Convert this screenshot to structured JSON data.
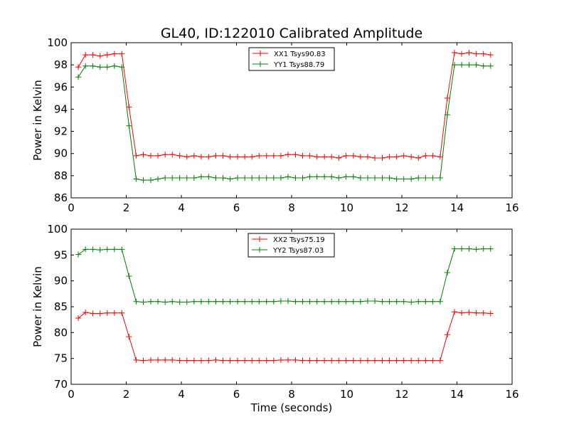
{
  "chart_data": [
    {
      "type": "line",
      "title": "GL40, ID:122010 Calibrated Amplitude",
      "xlabel": "",
      "ylabel": "Power in Kelvin",
      "xlim": [
        0,
        16
      ],
      "ylim": [
        86,
        100
      ],
      "xticks": [
        0,
        2,
        4,
        6,
        8,
        10,
        12,
        14,
        16
      ],
      "yticks": [
        86,
        88,
        90,
        92,
        94,
        96,
        98,
        100
      ],
      "grid": false,
      "legend": "top-center",
      "x": [
        0.26,
        0.52,
        0.79,
        1.05,
        1.31,
        1.57,
        1.84,
        2.1,
        2.36,
        2.62,
        2.89,
        3.15,
        3.41,
        3.67,
        3.94,
        4.2,
        4.46,
        4.72,
        4.99,
        5.25,
        5.51,
        5.77,
        6.04,
        6.3,
        6.56,
        6.82,
        7.09,
        7.35,
        7.61,
        7.87,
        8.14,
        8.4,
        8.66,
        8.92,
        9.19,
        9.45,
        9.71,
        9.97,
        10.24,
        10.5,
        10.76,
        11.02,
        11.29,
        11.55,
        11.81,
        12.07,
        12.34,
        12.6,
        12.86,
        13.12,
        13.39,
        13.65,
        13.91,
        14.17,
        14.44,
        14.7,
        14.96,
        15.22
      ],
      "series": [
        {
          "name": "XX1 Tsys90.83",
          "color": "#ff0000",
          "values": [
            97.8,
            98.9,
            98.9,
            98.8,
            98.9,
            99.0,
            99.0,
            94.2,
            89.8,
            89.9,
            89.8,
            89.8,
            89.9,
            89.9,
            89.8,
            89.7,
            89.8,
            89.7,
            89.7,
            89.8,
            89.8,
            89.7,
            89.7,
            89.7,
            89.7,
            89.8,
            89.8,
            89.8,
            89.8,
            89.9,
            89.9,
            89.8,
            89.8,
            89.7,
            89.7,
            89.7,
            89.6,
            89.8,
            89.8,
            89.7,
            89.7,
            89.6,
            89.6,
            89.7,
            89.7,
            89.8,
            89.7,
            89.6,
            89.8,
            89.8,
            89.7,
            95.0,
            99.1,
            99.0,
            99.1,
            99.0,
            99.0,
            98.9
          ]
        },
        {
          "name": "YY1 Tsys88.79",
          "color": "#008000",
          "values": [
            96.9,
            97.9,
            97.9,
            97.8,
            97.8,
            97.9,
            97.8,
            92.5,
            87.7,
            87.6,
            87.6,
            87.7,
            87.8,
            87.8,
            87.8,
            87.8,
            87.8,
            87.9,
            87.9,
            87.8,
            87.8,
            87.7,
            87.8,
            87.8,
            87.8,
            87.8,
            87.8,
            87.8,
            87.8,
            87.9,
            87.8,
            87.8,
            87.9,
            87.9,
            87.9,
            87.9,
            87.8,
            87.9,
            87.9,
            87.8,
            87.8,
            87.8,
            87.8,
            87.8,
            87.7,
            87.7,
            87.7,
            87.8,
            87.8,
            87.8,
            87.8,
            93.5,
            98.0,
            98.0,
            98.0,
            98.0,
            97.9,
            97.9
          ]
        }
      ]
    },
    {
      "type": "line",
      "title": "",
      "xlabel": "Time (seconds)",
      "ylabel": "Power in Kelvin",
      "xlim": [
        0,
        16
      ],
      "ylim": [
        70,
        100
      ],
      "xticks": [
        0,
        2,
        4,
        6,
        8,
        10,
        12,
        14,
        16
      ],
      "yticks": [
        70,
        75,
        80,
        85,
        90,
        95,
        100
      ],
      "grid": false,
      "legend": "top-center",
      "x": [
        0.26,
        0.52,
        0.79,
        1.05,
        1.31,
        1.57,
        1.84,
        2.1,
        2.36,
        2.62,
        2.89,
        3.15,
        3.41,
        3.67,
        3.94,
        4.2,
        4.46,
        4.72,
        4.99,
        5.25,
        5.51,
        5.77,
        6.04,
        6.3,
        6.56,
        6.82,
        7.09,
        7.35,
        7.61,
        7.87,
        8.14,
        8.4,
        8.66,
        8.92,
        9.19,
        9.45,
        9.71,
        9.97,
        10.24,
        10.5,
        10.76,
        11.02,
        11.29,
        11.55,
        11.81,
        12.07,
        12.34,
        12.6,
        12.86,
        13.12,
        13.39,
        13.65,
        13.91,
        14.17,
        14.44,
        14.7,
        14.96,
        15.22
      ],
      "series": [
        {
          "name": "XX2 Tsys75.19",
          "color": "#ff0000",
          "values": [
            82.8,
            83.9,
            83.7,
            83.7,
            83.8,
            83.8,
            83.8,
            79.2,
            74.7,
            74.6,
            74.7,
            74.7,
            74.7,
            74.7,
            74.6,
            74.6,
            74.6,
            74.6,
            74.6,
            74.7,
            74.6,
            74.6,
            74.6,
            74.6,
            74.6,
            74.6,
            74.6,
            74.6,
            74.7,
            74.7,
            74.7,
            74.6,
            74.6,
            74.6,
            74.6,
            74.6,
            74.6,
            74.6,
            74.6,
            74.6,
            74.6,
            74.6,
            74.6,
            74.6,
            74.6,
            74.6,
            74.6,
            74.6,
            74.6,
            74.6,
            74.6,
            79.6,
            84.0,
            83.8,
            83.9,
            83.8,
            83.8,
            83.7
          ]
        },
        {
          "name": "YY2 Tsys87.03",
          "color": "#008000",
          "values": [
            95.1,
            96.1,
            96.1,
            96.0,
            96.1,
            96.1,
            96.1,
            90.9,
            86.0,
            85.9,
            86.0,
            86.0,
            85.9,
            86.0,
            85.9,
            85.9,
            86.0,
            86.0,
            86.0,
            86.0,
            86.0,
            86.0,
            86.0,
            86.0,
            86.0,
            86.0,
            86.0,
            86.0,
            86.1,
            86.1,
            86.0,
            86.0,
            86.0,
            86.0,
            86.0,
            86.0,
            86.0,
            86.0,
            86.0,
            86.0,
            86.1,
            86.1,
            86.0,
            86.0,
            86.0,
            86.0,
            85.9,
            86.0,
            86.0,
            86.0,
            86.0,
            91.6,
            96.2,
            96.2,
            96.2,
            96.1,
            96.2,
            96.2
          ]
        }
      ]
    }
  ]
}
